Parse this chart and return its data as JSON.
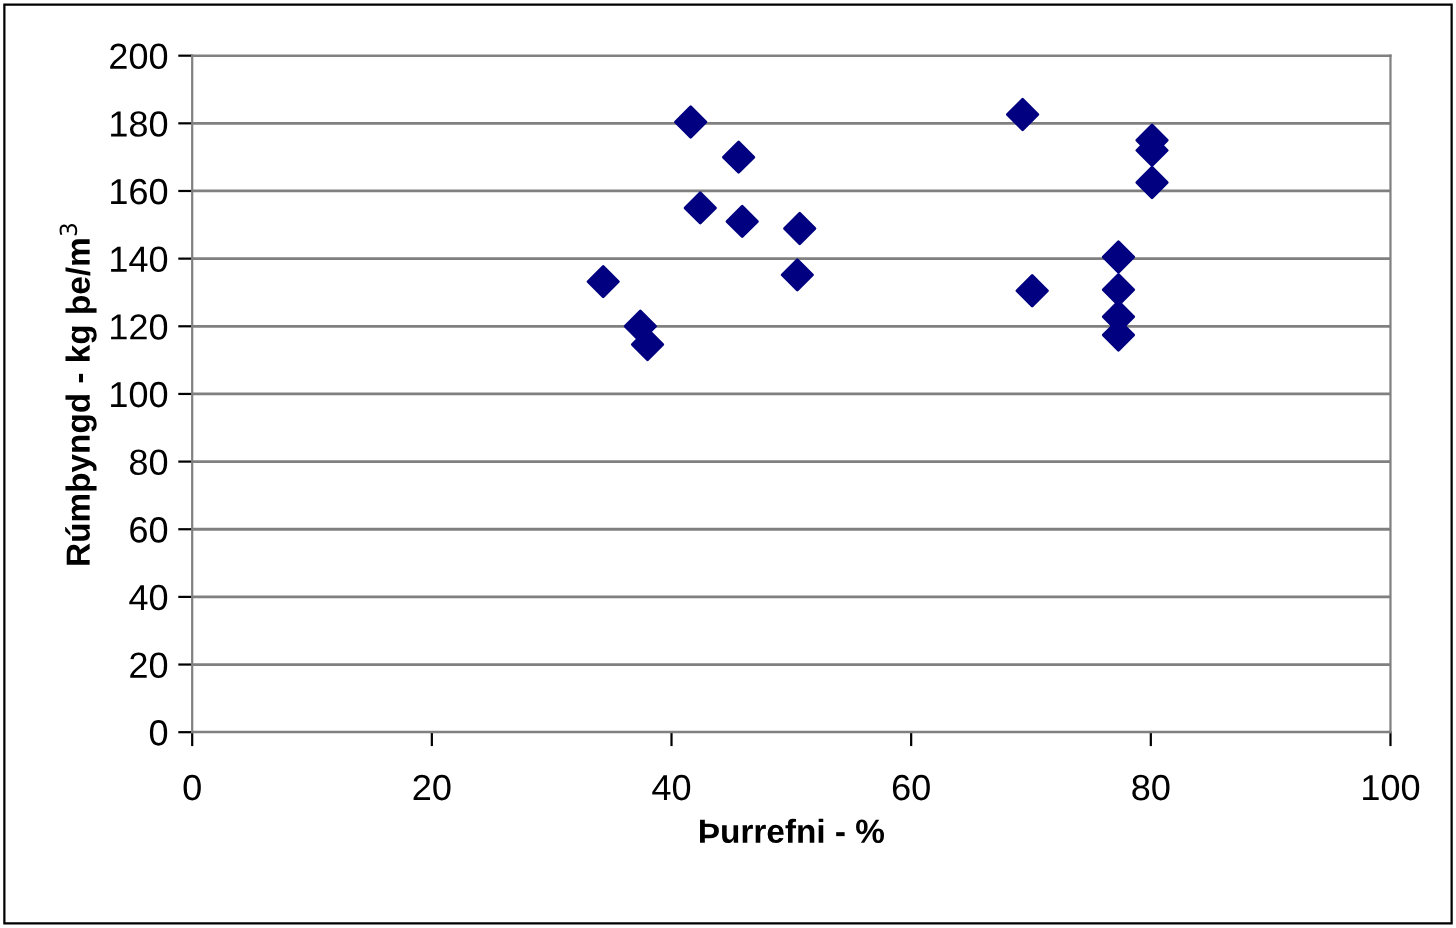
{
  "chart_data": {
    "type": "scatter",
    "xlabel": "Þurrefni - %",
    "ylabel": "Rúmþyngd - kg þe/m$^{3}$",
    "series": [
      {
        "color": "#000080",
        "marker": "diamond",
        "x": [
          41.6,
          45.6,
          42.4,
          45.9,
          50.7,
          50.5,
          34.3,
          37.4,
          38.0,
          69.3,
          70.1,
          77.3,
          77.3,
          77.3,
          77.3,
          80.1,
          80.1,
          80.1
        ],
        "values": [
          180.4,
          170,
          155,
          151,
          148.9,
          135.2,
          133.2,
          120,
          114.6,
          182.6,
          130.5,
          140.5,
          130.8,
          122.8,
          117.4,
          175,
          172,
          162.5
        ]
      }
    ],
    "xlim": [
      0,
      100
    ],
    "xticks": [
      0,
      20,
      40,
      60,
      80,
      100
    ],
    "ylim": [
      0,
      200
    ],
    "yticks": [
      0,
      20,
      40,
      60,
      80,
      100,
      120,
      140,
      160,
      180,
      200
    ],
    "grid": "y",
    "legend": false
  }
}
